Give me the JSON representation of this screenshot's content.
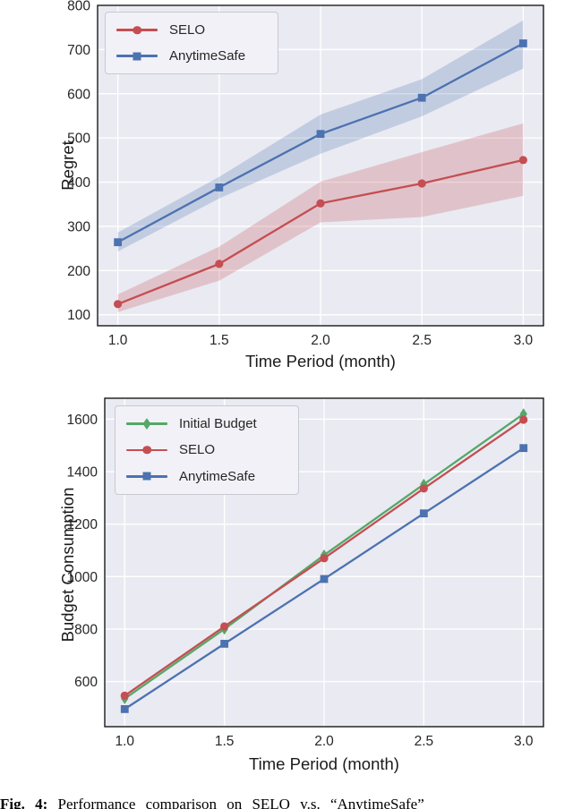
{
  "caption": {
    "label": "Fig. 4:",
    "text": "Performance comparison on SELO v.s. “AnytimeSafe”"
  },
  "colors": {
    "selo_red": "#c44e52",
    "anytimesafe_blue": "#4c72b0",
    "initial_budget_green": "#55a868",
    "panel_background": "#eaeaf2",
    "gridline": "#ffffff",
    "frame": "#1a1a1a",
    "tick_text": "#262626"
  },
  "chart_data": [
    {
      "type": "line",
      "title": "",
      "xlabel": "Time Period (month)",
      "ylabel": "Regret",
      "x": [
        1.0,
        1.5,
        2.0,
        2.5,
        3.0
      ],
      "xticks": [
        1.0,
        1.5,
        2.0,
        2.5,
        3.0
      ],
      "xtick_labels": [
        "1.0",
        "1.5",
        "2.0",
        "2.5",
        "3.0"
      ],
      "yticks": [
        100,
        200,
        300,
        400,
        500,
        600,
        700,
        800
      ],
      "xlim": [
        0.9,
        3.1
      ],
      "ylim": [
        75,
        800
      ],
      "grid": true,
      "legend_position": "upper-left",
      "series": [
        {
          "name": "SELO",
          "color": "#c44e52",
          "marker": "circle",
          "values": [
            124,
            215,
            352,
            397,
            450
          ],
          "band_lower": [
            106,
            177,
            309,
            321,
            369
          ],
          "band_upper": [
            146,
            254,
            401,
            468,
            533
          ]
        },
        {
          "name": "AnytimeSafe",
          "color": "#4c72b0",
          "marker": "square",
          "values": [
            264,
            388,
            509,
            591,
            714
          ],
          "band_lower": [
            243,
            363,
            464,
            549,
            657
          ],
          "band_upper": [
            286,
            412,
            553,
            633,
            766
          ]
        }
      ]
    },
    {
      "type": "line",
      "title": "",
      "xlabel": "Time Period (month)",
      "ylabel": "Budget Consumption",
      "x": [
        1.0,
        1.5,
        2.0,
        2.5,
        3.0
      ],
      "xticks": [
        1.0,
        1.5,
        2.0,
        2.5,
        3.0
      ],
      "xtick_labels": [
        "1.0",
        "1.5",
        "2.0",
        "2.5",
        "3.0"
      ],
      "yticks": [
        600,
        800,
        1000,
        1200,
        1400,
        1600
      ],
      "xlim": [
        0.9,
        3.1
      ],
      "ylim": [
        428,
        1680
      ],
      "grid": true,
      "legend_position": "upper-left",
      "series": [
        {
          "name": "Initial Budget",
          "color": "#55a868",
          "marker": "diamond",
          "values": [
            535,
            800,
            1082,
            1352,
            1620
          ]
        },
        {
          "name": "SELO",
          "color": "#c44e52",
          "marker": "circle",
          "values": [
            546,
            810,
            1070,
            1336,
            1598
          ]
        },
        {
          "name": "AnytimeSafe",
          "color": "#4c72b0",
          "marker": "square",
          "values": [
            495,
            744,
            991,
            1241,
            1490
          ]
        }
      ]
    }
  ]
}
